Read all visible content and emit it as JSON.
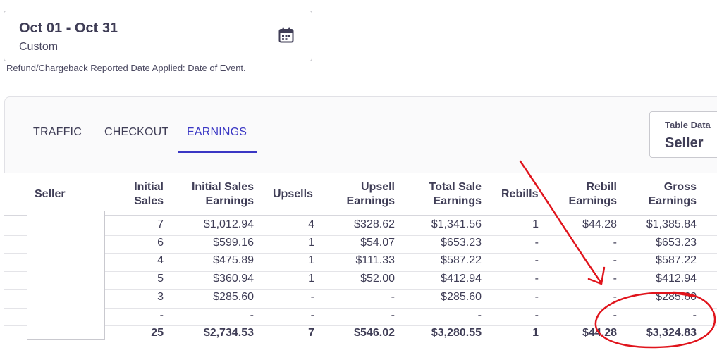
{
  "date_filter": {
    "range": "Oct 01 - Oct 31",
    "preset": "Custom",
    "icon": "calendar-icon"
  },
  "refund_note": "Refund/Chargeback Reported Date Applied: Date of Event.",
  "tabs": [
    {
      "label": "TRAFFIC",
      "active": false
    },
    {
      "label": "CHECKOUT",
      "active": false
    },
    {
      "label": "EARNINGS",
      "active": true
    }
  ],
  "table_data_selector": {
    "label": "Table Data",
    "value": "Seller"
  },
  "table": {
    "headers": {
      "seller": "Seller",
      "initial_sales": [
        "Initial",
        "Sales"
      ],
      "initial_sales_earnings": [
        "Initial Sales",
        "Earnings"
      ],
      "upsells": "Upsells",
      "upsell_earnings": [
        "Upsell",
        "Earnings"
      ],
      "total_sale_earnings": [
        "Total Sale",
        "Earnings"
      ],
      "rebills": "Rebills",
      "rebill_earnings": [
        "Rebill",
        "Earnings"
      ],
      "gross_earnings": [
        "Gross",
        "Earnings"
      ]
    },
    "rows": [
      [
        "7",
        "$1,012.94",
        "4",
        "$328.62",
        "$1,341.56",
        "1",
        "$44.28",
        "$1,385.84"
      ],
      [
        "6",
        "$599.16",
        "1",
        "$54.07",
        "$653.23",
        "-",
        "-",
        "$653.23"
      ],
      [
        "4",
        "$475.89",
        "1",
        "$111.33",
        "$587.22",
        "-",
        "-",
        "$587.22"
      ],
      [
        "5",
        "$360.94",
        "1",
        "$52.00",
        "$412.94",
        "-",
        "-",
        "$412.94"
      ],
      [
        "3",
        "$285.60",
        "-",
        "-",
        "$285.60",
        "-",
        "-",
        "$285.60"
      ],
      [
        "-",
        "-",
        "-",
        "-",
        "-",
        "-",
        "-",
        "-"
      ]
    ],
    "totals": [
      "25",
      "$2,734.53",
      "7",
      "$546.02",
      "$3,280.55",
      "1",
      "$44.28",
      "$3,324.83"
    ]
  },
  "annotation_color": "#e0141c"
}
